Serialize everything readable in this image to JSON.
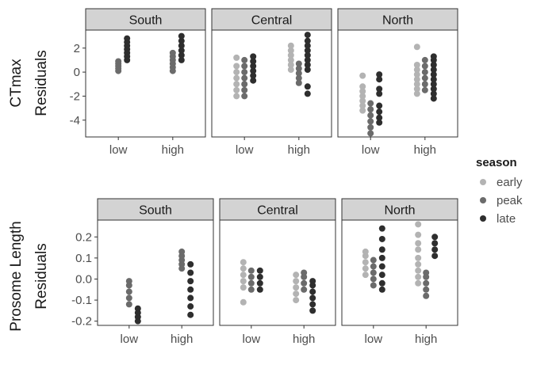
{
  "colors": {
    "early": "#b3b3b3",
    "peak": "#6b6b6b",
    "late": "#2e2e2e"
  },
  "legend": {
    "title": "season",
    "entries": [
      {
        "key": "early",
        "label": "early"
      },
      {
        "key": "peak",
        "label": "peak"
      },
      {
        "key": "late",
        "label": "late"
      }
    ]
  },
  "chart_data": [
    {
      "type": "scatter",
      "ylabel_lines": [
        "CTmax",
        "Residuals"
      ],
      "ylim": [
        -5.4,
        3.5
      ],
      "yticks": [
        -4,
        -2,
        0,
        2
      ],
      "categories": [
        "low",
        "high"
      ],
      "panels": [
        {
          "label": "South",
          "groups": [
            {
              "cat": "low",
              "season": "early",
              "values": []
            },
            {
              "cat": "low",
              "season": "peak",
              "values": [
                0.1,
                0.3,
                0.5,
                0.7,
                0.9
              ]
            },
            {
              "cat": "low",
              "season": "late",
              "values": [
                1.0,
                1.3,
                1.6,
                1.9,
                2.2,
                2.5,
                2.8
              ]
            },
            {
              "cat": "high",
              "season": "early",
              "values": []
            },
            {
              "cat": "high",
              "season": "peak",
              "values": [
                0.1,
                0.4,
                0.7,
                1.0,
                1.3,
                1.6
              ]
            },
            {
              "cat": "high",
              "season": "late",
              "values": [
                1.0,
                1.4,
                1.8,
                2.2,
                2.6,
                3.0
              ]
            }
          ]
        },
        {
          "label": "Central",
          "groups": [
            {
              "cat": "low",
              "season": "early",
              "values": [
                -2.0,
                -1.5,
                -1.0,
                -0.5,
                0.0,
                0.5,
                1.2
              ]
            },
            {
              "cat": "low",
              "season": "peak",
              "values": [
                -2.0,
                -1.5,
                -1.0,
                -0.5,
                0.0,
                0.5,
                1.0
              ]
            },
            {
              "cat": "low",
              "season": "late",
              "values": [
                -0.7,
                -0.3,
                0.1,
                0.5,
                0.9,
                1.3
              ]
            },
            {
              "cat": "high",
              "season": "early",
              "values": [
                0.2,
                0.6,
                1.0,
                1.4,
                1.8,
                2.2
              ]
            },
            {
              "cat": "high",
              "season": "peak",
              "values": [
                -0.9,
                -0.5,
                -0.1,
                0.3,
                0.7
              ]
            },
            {
              "cat": "high",
              "season": "late",
              "values": [
                -1.8,
                -1.2,
                0.2,
                0.6,
                1.0,
                1.4,
                1.8,
                2.2,
                2.6,
                3.1
              ]
            }
          ]
        },
        {
          "label": "North",
          "groups": [
            {
              "cat": "low",
              "season": "early",
              "values": [
                -3.2,
                -2.8,
                -2.4,
                -2.0,
                -1.6,
                -1.2,
                -0.3
              ]
            },
            {
              "cat": "low",
              "season": "peak",
              "values": [
                -5.1,
                -4.6,
                -4.1,
                -3.6,
                -3.1,
                -2.6
              ]
            },
            {
              "cat": "low",
              "season": "late",
              "values": [
                -4.2,
                -3.8,
                -3.3,
                -2.8,
                -1.8,
                -1.4,
                -0.6,
                -0.2
              ]
            },
            {
              "cat": "high",
              "season": "early",
              "values": [
                -1.8,
                -1.4,
                -1.0,
                -0.6,
                -0.2,
                0.2,
                0.6,
                2.1
              ]
            },
            {
              "cat": "high",
              "season": "peak",
              "values": [
                -1.5,
                -1.0,
                -0.5,
                0.0,
                0.5,
                1.0
              ]
            },
            {
              "cat": "high",
              "season": "late",
              "values": [
                -2.2,
                -1.8,
                -1.4,
                -1.0,
                -0.6,
                -0.2,
                0.2,
                0.6,
                1.0,
                1.3
              ]
            }
          ]
        }
      ]
    },
    {
      "type": "scatter",
      "ylabel_lines": [
        "Prosome Length",
        "Residuals"
      ],
      "ylim": [
        -0.22,
        0.28
      ],
      "yticks": [
        -0.2,
        -0.1,
        0.0,
        0.1,
        0.2
      ],
      "ytick_labels": [
        "-0.2",
        "-0.1",
        "0.0",
        "0.1",
        "0.2"
      ],
      "categories": [
        "low",
        "high"
      ],
      "panels": [
        {
          "label": "South",
          "groups": [
            {
              "cat": "low",
              "season": "early",
              "values": []
            },
            {
              "cat": "low",
              "season": "peak",
              "values": [
                -0.12,
                -0.09,
                -0.06,
                -0.03,
                -0.01
              ]
            },
            {
              "cat": "low",
              "season": "late",
              "values": [
                -0.2,
                -0.18,
                -0.16,
                -0.14
              ]
            },
            {
              "cat": "high",
              "season": "early",
              "values": []
            },
            {
              "cat": "high",
              "season": "peak",
              "values": [
                0.05,
                0.07,
                0.09,
                0.11,
                0.13
              ]
            },
            {
              "cat": "high",
              "season": "late",
              "values": [
                -0.17,
                -0.13,
                -0.09,
                -0.05,
                -0.01,
                0.03,
                0.07
              ]
            }
          ]
        },
        {
          "label": "Central",
          "groups": [
            {
              "cat": "low",
              "season": "early",
              "values": [
                -0.11,
                -0.04,
                -0.01,
                0.02,
                0.05,
                0.08
              ]
            },
            {
              "cat": "low",
              "season": "peak",
              "values": [
                -0.05,
                -0.02,
                0.01,
                0.04
              ]
            },
            {
              "cat": "low",
              "season": "late",
              "values": [
                -0.05,
                -0.02,
                0.01,
                0.04
              ]
            },
            {
              "cat": "high",
              "season": "early",
              "values": [
                -0.1,
                -0.07,
                -0.04,
                -0.01,
                0.02
              ]
            },
            {
              "cat": "high",
              "season": "peak",
              "values": [
                -0.05,
                -0.02,
                0.01,
                0.03
              ]
            },
            {
              "cat": "high",
              "season": "late",
              "values": [
                -0.15,
                -0.12,
                -0.09,
                -0.06,
                -0.03,
                -0.01
              ]
            }
          ]
        },
        {
          "label": "North",
          "groups": [
            {
              "cat": "low",
              "season": "early",
              "values": [
                0.02,
                0.05,
                0.08,
                0.11,
                0.13
              ]
            },
            {
              "cat": "low",
              "season": "peak",
              "values": [
                -0.03,
                0.0,
                0.03,
                0.06,
                0.09
              ]
            },
            {
              "cat": "low",
              "season": "late",
              "values": [
                -0.05,
                -0.02,
                0.02,
                0.06,
                0.1,
                0.14,
                0.19,
                0.24
              ]
            },
            {
              "cat": "high",
              "season": "early",
              "values": [
                -0.02,
                0.01,
                0.04,
                0.07,
                0.1,
                0.14,
                0.17,
                0.21,
                0.26
              ]
            },
            {
              "cat": "high",
              "season": "peak",
              "values": [
                -0.08,
                -0.05,
                -0.02,
                0.01,
                0.03
              ]
            },
            {
              "cat": "high",
              "season": "late",
              "values": [
                0.11,
                0.14,
                0.17,
                0.2
              ]
            }
          ]
        }
      ]
    }
  ]
}
